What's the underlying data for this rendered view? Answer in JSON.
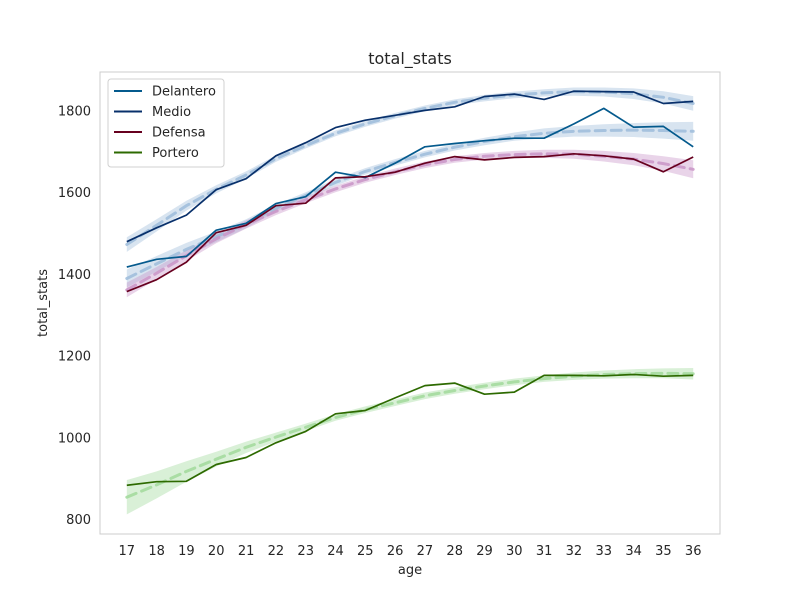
{
  "chart_data": {
    "type": "line",
    "title": "total_stats",
    "xlabel": "age",
    "ylabel": "total_stats",
    "x": [
      17,
      18,
      19,
      20,
      21,
      22,
      23,
      24,
      25,
      26,
      27,
      28,
      29,
      30,
      31,
      32,
      33,
      34,
      35,
      36
    ],
    "xlim": [
      16.1,
      36.9
    ],
    "ylim": [
      765,
      1895
    ],
    "yticks": [
      800,
      1000,
      1200,
      1400,
      1600,
      1800
    ],
    "grid": false,
    "legend_position": "top-left",
    "series": [
      {
        "name": "Delantero",
        "color": "#045a8d",
        "values": [
          1418,
          1437,
          1444,
          1508,
          1525,
          1573,
          1590,
          1650,
          1637,
          1672,
          1712,
          1720,
          1727,
          1733,
          1733,
          1768,
          1806,
          1760,
          1762,
          1712
        ],
        "fit": [
          1390,
          1426,
          1461,
          1492,
          1524,
          1562,
          1593,
          1625,
          1652,
          1674,
          1694,
          1711,
          1725,
          1737,
          1745,
          1750,
          1752,
          1753,
          1752,
          1750
        ],
        "fit_band": [
          22,
          19,
          16,
          13,
          11,
          9,
          8,
          8,
          8,
          8,
          8,
          8,
          9,
          10,
          12,
          13,
          15,
          17,
          20,
          23
        ],
        "fit_color": "#9ebcda"
      },
      {
        "name": "Medio",
        "color": "#08306b",
        "values": [
          1480,
          1514,
          1545,
          1607,
          1634,
          1690,
          1722,
          1759,
          1777,
          1789,
          1801,
          1810,
          1835,
          1841,
          1828,
          1848,
          1847,
          1846,
          1818,
          1823
        ],
        "fit": [
          1473,
          1520,
          1568,
          1608,
          1643,
          1683,
          1715,
          1745,
          1768,
          1788,
          1806,
          1821,
          1831,
          1839,
          1844,
          1847,
          1846,
          1842,
          1833,
          1818
        ],
        "fit_band": [
          18,
          15,
          12,
          10,
          9,
          8,
          7,
          7,
          7,
          7,
          7,
          7,
          8,
          8,
          9,
          10,
          11,
          13,
          15,
          18
        ],
        "fit_color": "#9ebcda"
      },
      {
        "name": "Defensa",
        "color": "#67001f",
        "values": [
          1358,
          1387,
          1430,
          1502,
          1520,
          1568,
          1574,
          1636,
          1639,
          1650,
          1672,
          1688,
          1680,
          1686,
          1688,
          1695,
          1690,
          1682,
          1651,
          1687
        ],
        "fit": [
          1362,
          1403,
          1446,
          1487,
          1522,
          1554,
          1582,
          1609,
          1632,
          1651,
          1668,
          1681,
          1689,
          1693,
          1695,
          1694,
          1689,
          1682,
          1671,
          1657
        ],
        "fit_band": [
          18,
          15,
          13,
          11,
          10,
          9,
          8,
          8,
          8,
          8,
          8,
          8,
          8,
          9,
          10,
          11,
          13,
          15,
          18,
          22
        ],
        "fit_color": "#c994c7"
      },
      {
        "name": "Portero",
        "color": "#2d6a00",
        "values": [
          884,
          893,
          894,
          935,
          952,
          988,
          1016,
          1059,
          1067,
          1098,
          1128,
          1134,
          1107,
          1112,
          1153,
          1153,
          1152,
          1155,
          1151,
          1153
        ],
        "fit": [
          855,
          885,
          918,
          948,
          977,
          1002,
          1026,
          1050,
          1069,
          1086,
          1103,
          1116,
          1127,
          1137,
          1145,
          1151,
          1155,
          1157,
          1158,
          1157
        ],
        "fit_band": [
          42,
          33,
          25,
          18,
          14,
          11,
          9,
          8,
          8,
          8,
          8,
          8,
          8,
          8,
          8,
          9,
          10,
          11,
          12,
          14
        ],
        "fit_color": "#a1d99b"
      }
    ]
  }
}
